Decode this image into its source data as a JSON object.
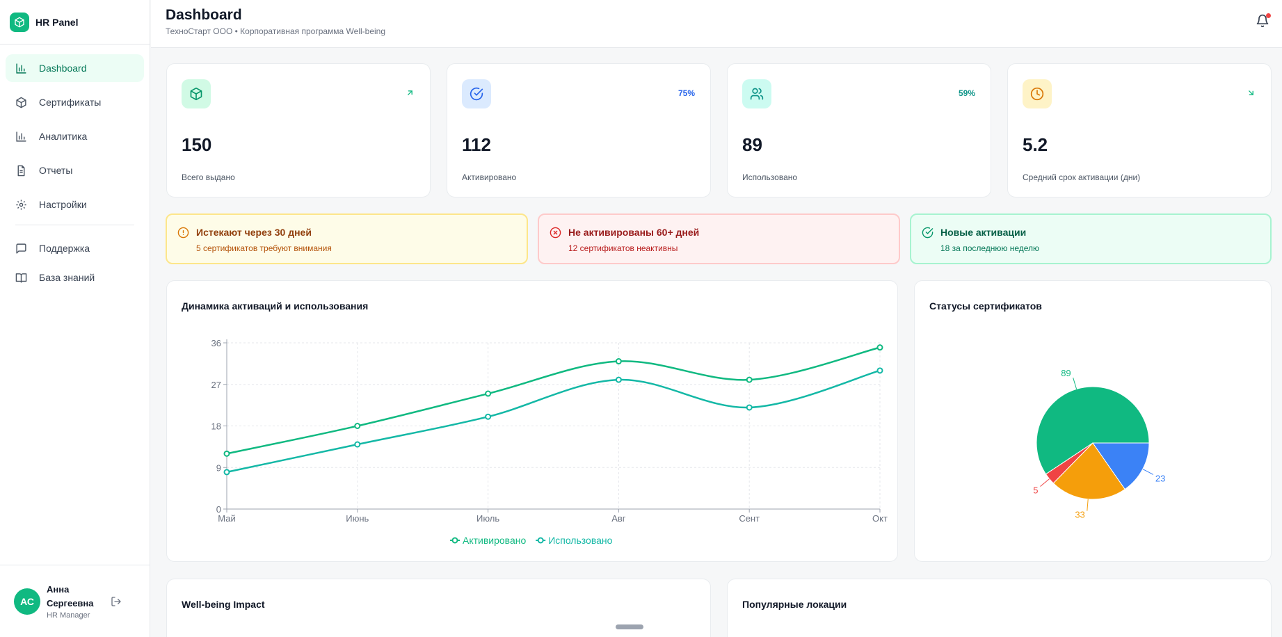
{
  "sidebar": {
    "brand": "HR Panel",
    "items": [
      {
        "label": "Dashboard",
        "icon": "bar-chart-icon",
        "active": true
      },
      {
        "label": "Сертификаты",
        "icon": "package-icon"
      },
      {
        "label": "Аналитика",
        "icon": "bar-chart-icon"
      },
      {
        "label": "Отчеты",
        "icon": "document-icon"
      },
      {
        "label": "Настройки",
        "icon": "gear-icon"
      }
    ],
    "secondary": [
      {
        "label": "Поддержка",
        "icon": "message-icon"
      },
      {
        "label": "База знаний",
        "icon": "book-icon"
      }
    ],
    "user": {
      "initials": "АС",
      "name": "Анна Сергеевна",
      "role": "HR Manager"
    }
  },
  "header": {
    "title": "Dashboard",
    "subtitle": "ТехноСтарт ООО • Корпоративная программа Well-being"
  },
  "stats": [
    {
      "value": "150",
      "label": "Всего выдано",
      "trend": "",
      "trend_icon": "arrow-up-right-icon",
      "icon": "package-icon",
      "color": "#10b981",
      "bg": "#d1fae5"
    },
    {
      "value": "112",
      "label": "Активировано",
      "trend": "75%",
      "icon": "check-circle-icon",
      "color": "#2563eb",
      "bg": "#dbeafe"
    },
    {
      "value": "89",
      "label": "Использовано",
      "trend": "59%",
      "icon": "users-icon",
      "color": "#0d9488",
      "bg": "#ccfbf1"
    },
    {
      "value": "5.2",
      "label": "Средний срок активации (дни)",
      "trend": "",
      "trend_icon": "arrow-down-right-icon",
      "icon": "clock-icon",
      "color": "#d97706",
      "bg": "#fef3c7"
    }
  ],
  "alerts": [
    {
      "title": "Истекают через 30 дней",
      "sub": "5 сертификатов требуют внимания"
    },
    {
      "title": "Не активированы 60+ дней",
      "sub": "12 сертификатов неактивны"
    },
    {
      "title": "Новые активации",
      "sub": "18 за последнюю неделю"
    }
  ],
  "panels": {
    "line_title": "Динамика активаций и использования",
    "pie_title": "Статусы сертификатов",
    "impact_title": "Well-being Impact",
    "locations_title": "Популярные локации"
  },
  "chart_data": [
    {
      "type": "line",
      "title": "Динамика активаций и использования",
      "x": [
        "Май",
        "Июнь",
        "Июль",
        "Авг",
        "Сент",
        "Окт"
      ],
      "series": [
        {
          "name": "Активировано",
          "values": [
            12,
            18,
            25,
            32,
            28,
            35
          ],
          "color": "#10b981"
        },
        {
          "name": "Использовано",
          "values": [
            8,
            14,
            20,
            28,
            22,
            30
          ],
          "color": "#14b8a6"
        }
      ],
      "ylim": [
        0,
        36
      ],
      "yticks": [
        0,
        9,
        18,
        27,
        36
      ],
      "grid": true,
      "legend": "bottom"
    },
    {
      "type": "pie",
      "title": "Статусы сертификатов",
      "slices": [
        {
          "value": 89,
          "color": "#10b981"
        },
        {
          "value": 5,
          "color": "#ef4444"
        },
        {
          "value": 33,
          "color": "#f59e0b"
        },
        {
          "value": 23,
          "color": "#3b82f6"
        }
      ]
    }
  ]
}
